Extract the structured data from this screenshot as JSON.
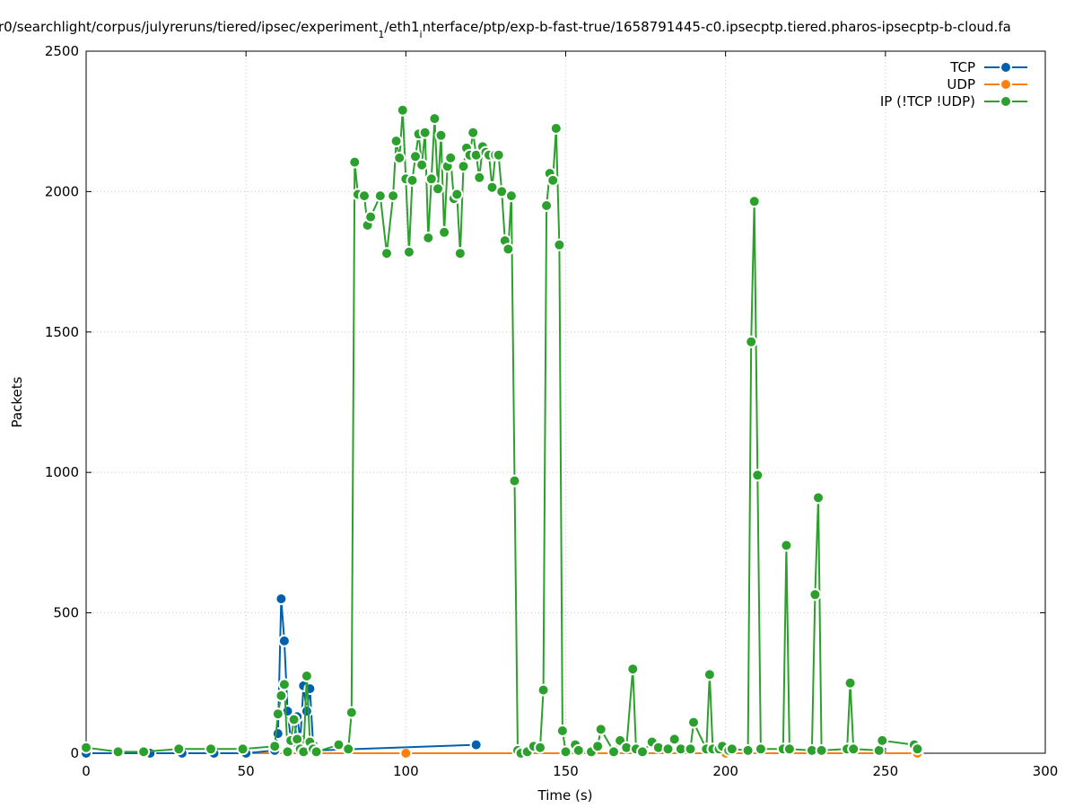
{
  "chart_data": {
    "type": "line",
    "title": "r0/searchlight/corpus/julyreruns/tiered/ipsec/experiment_1/eth1_interface/ptp/exp-b-fast-true/1658791445-c0.ipsecptp.tiered.pharos-ipsecptp-b-cloud.fa",
    "title_parts": {
      "a": "r0/searchlight/corpus/julyreruns/tiered/ipsec/experiment",
      "sub1": "1",
      "b": "/eth1",
      "sub2": "i",
      "c": "nterface/ptp/exp-b-fast-true/1658791445-c0.ipsecptp.tiered.pharos-ipsecptp-b-cloud.fa"
    },
    "xlabel": "Time (s)",
    "ylabel": "Packets",
    "xlim": [
      0,
      300
    ],
    "ylim": [
      0,
      2500
    ],
    "xticks": [
      0,
      50,
      100,
      150,
      200,
      250,
      300
    ],
    "yticks": [
      0,
      500,
      1000,
      1500,
      2000,
      2500
    ],
    "grid": true,
    "legend_position": "top-right",
    "series": [
      {
        "name": "TCP",
        "color": "#0060ad",
        "x": [
          0,
          10,
          20,
          30,
          40,
          50,
          59,
          60,
          61,
          62,
          63,
          64,
          65,
          66,
          67,
          68,
          69,
          70,
          71,
          72,
          122
        ],
        "y": [
          0,
          0,
          0,
          0,
          0,
          0,
          10,
          70,
          550,
          400,
          150,
          50,
          40,
          130,
          50,
          240,
          150,
          230,
          30,
          10,
          30
        ]
      },
      {
        "name": "UDP",
        "color": "#ff7f0e",
        "x": [
          0,
          50,
          100,
          150,
          200,
          260
        ],
        "y": [
          0,
          0,
          0,
          0,
          0,
          0
        ]
      },
      {
        "name": "IP (!TCP  !UDP)",
        "color": "#2ca02c",
        "x": [
          0,
          10,
          18,
          29,
          39,
          49,
          59,
          60,
          61,
          62,
          63,
          64,
          65,
          66,
          67,
          68,
          69,
          70,
          71,
          72,
          79,
          82,
          83,
          84,
          85,
          87,
          88,
          89,
          92,
          94,
          96,
          97,
          98,
          99,
          100,
          101,
          102,
          103,
          104,
          105,
          106,
          107,
          108,
          109,
          110,
          111,
          112,
          113,
          114,
          115,
          116,
          117,
          118,
          119,
          120,
          121,
          122,
          123,
          124,
          125,
          126,
          127,
          128,
          129,
          130,
          131,
          132,
          133,
          134,
          135,
          136,
          138,
          140,
          142,
          143,
          144,
          145,
          146,
          147,
          148,
          149,
          150,
          153,
          154,
          158,
          160,
          161,
          165,
          167,
          169,
          171,
          172,
          174,
          177,
          179,
          182,
          184,
          186,
          189,
          190,
          194,
          195,
          196,
          198,
          199,
          201,
          202,
          207,
          208,
          209,
          210,
          211,
          218,
          219,
          220,
          227,
          228,
          229,
          230,
          238,
          239,
          240,
          248,
          249,
          259,
          260
        ],
        "y": [
          20,
          5,
          5,
          15,
          15,
          15,
          25,
          140,
          205,
          245,
          5,
          45,
          120,
          50,
          15,
          5,
          275,
          40,
          15,
          5,
          30,
          15,
          145,
          2105,
          1990,
          1985,
          1880,
          1910,
          1985,
          1780,
          1985,
          2180,
          2120,
          2290,
          2045,
          1785,
          2040,
          2125,
          2205,
          2095,
          2210,
          1835,
          2045,
          2260,
          2010,
          2200,
          1855,
          2090,
          2120,
          1975,
          1990,
          1780,
          2090,
          2155,
          2130,
          2210,
          2130,
          2050,
          2160,
          2140,
          2130,
          2015,
          2130,
          2130,
          2000,
          1825,
          1795,
          1985,
          970,
          10,
          0,
          5,
          25,
          20,
          225,
          1950,
          2065,
          2040,
          2225,
          1810,
          80,
          5,
          30,
          10,
          5,
          25,
          85,
          5,
          45,
          20,
          300,
          15,
          5,
          40,
          20,
          15,
          50,
          15,
          15,
          110,
          15,
          280,
          15,
          15,
          25,
          10,
          15,
          10,
          1465,
          1965,
          990,
          15,
          15,
          740,
          15,
          10,
          565,
          910,
          10,
          15,
          250,
          15,
          10,
          45,
          30,
          15
        ]
      }
    ]
  }
}
